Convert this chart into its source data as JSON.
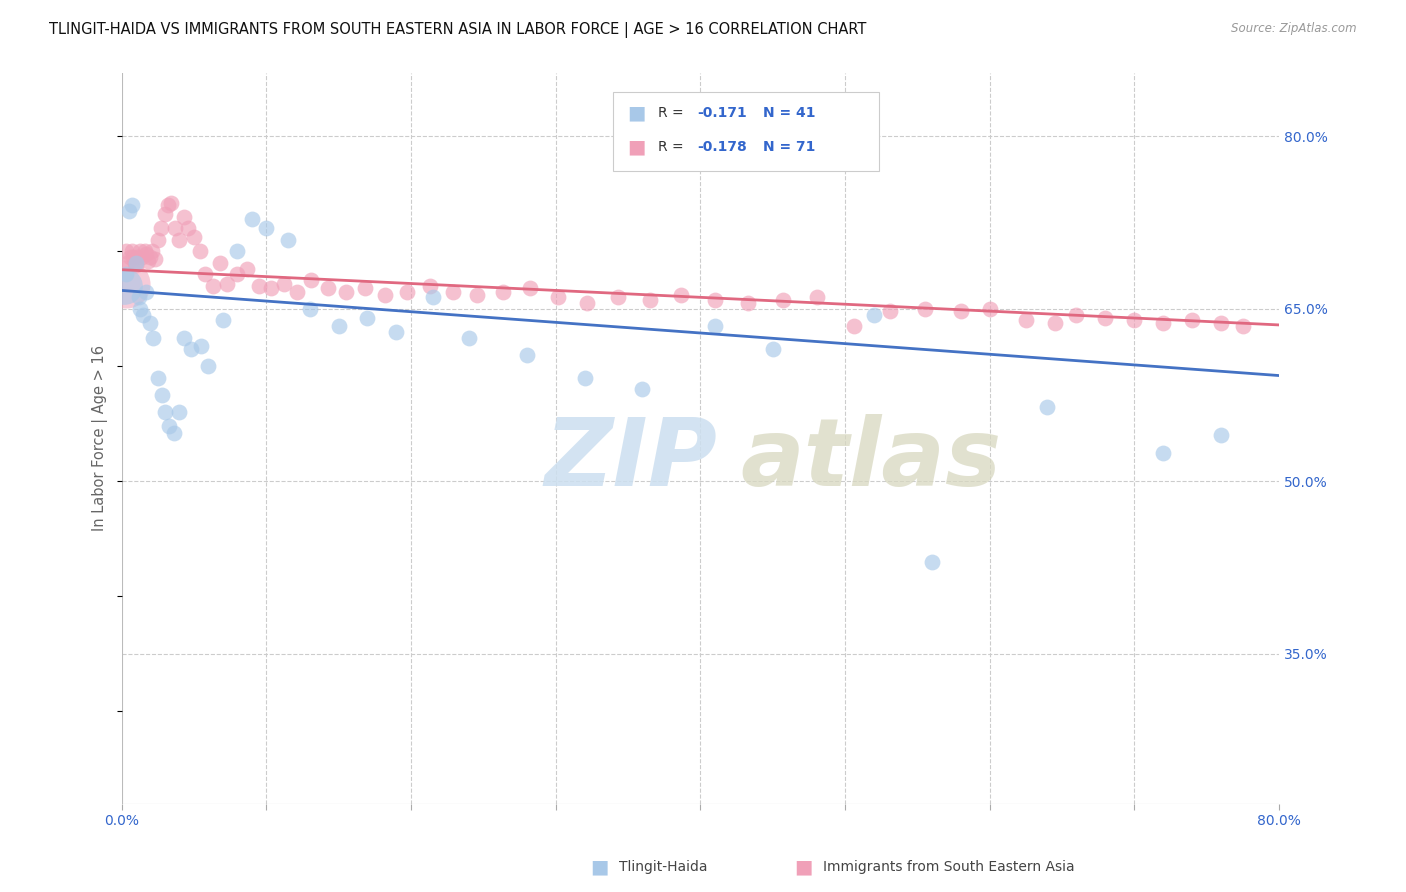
{
  "title": "TLINGIT-HAIDA VS IMMIGRANTS FROM SOUTH EASTERN ASIA IN LABOR FORCE | AGE > 16 CORRELATION CHART",
  "source": "Source: ZipAtlas.com",
  "ylabel": "In Labor Force | Age > 16",
  "x_min": 0.0,
  "x_max": 0.8,
  "y_min": 0.22,
  "y_max": 0.855,
  "y_ticks": [
    0.35,
    0.5,
    0.65,
    0.8
  ],
  "y_tick_labels": [
    "35.0%",
    "50.0%",
    "65.0%",
    "80.0%"
  ],
  "legend_label1": "Tlingit-Haida",
  "legend_label2": "Immigrants from South Eastern Asia",
  "R1": -0.171,
  "N1": 41,
  "R2": -0.178,
  "N2": 71,
  "blue_color": "#a8c8e8",
  "pink_color": "#f0a0b8",
  "blue_line_color": "#4472c4",
  "pink_line_color": "#e06880",
  "blue_line_x0": 0.0,
  "blue_line_y0": 0.666,
  "blue_line_x1": 0.8,
  "blue_line_y1": 0.592,
  "pink_line_x0": 0.0,
  "pink_line_y0": 0.684,
  "pink_line_x1": 0.8,
  "pink_line_y1": 0.636,
  "blue_x": [
    0.003,
    0.005,
    0.007,
    0.01,
    0.012,
    0.013,
    0.015,
    0.017,
    0.02,
    0.022,
    0.025,
    0.028,
    0.03,
    0.033,
    0.036,
    0.04,
    0.043,
    0.048,
    0.055,
    0.06,
    0.07,
    0.08,
    0.09,
    0.1,
    0.115,
    0.13,
    0.15,
    0.17,
    0.19,
    0.215,
    0.24,
    0.28,
    0.32,
    0.36,
    0.41,
    0.45,
    0.52,
    0.56,
    0.64,
    0.72,
    0.76
  ],
  "blue_y": [
    0.68,
    0.735,
    0.74,
    0.69,
    0.66,
    0.65,
    0.645,
    0.665,
    0.638,
    0.625,
    0.59,
    0.575,
    0.56,
    0.548,
    0.542,
    0.56,
    0.625,
    0.615,
    0.618,
    0.6,
    0.64,
    0.7,
    0.728,
    0.72,
    0.71,
    0.65,
    0.635,
    0.642,
    0.63,
    0.66,
    0.625,
    0.61,
    0.59,
    0.58,
    0.635,
    0.615,
    0.645,
    0.43,
    0.565,
    0.525,
    0.54
  ],
  "blue_large_x": [
    0.002
  ],
  "blue_large_y": [
    0.67
  ],
  "blue_large_s": 700,
  "pink_x": [
    0.003,
    0.004,
    0.006,
    0.007,
    0.008,
    0.009,
    0.01,
    0.011,
    0.013,
    0.014,
    0.016,
    0.017,
    0.018,
    0.02,
    0.021,
    0.023,
    0.025,
    0.027,
    0.03,
    0.032,
    0.034,
    0.037,
    0.04,
    0.043,
    0.046,
    0.05,
    0.054,
    0.058,
    0.063,
    0.068,
    0.073,
    0.08,
    0.087,
    0.095,
    0.103,
    0.112,
    0.121,
    0.131,
    0.143,
    0.155,
    0.168,
    0.182,
    0.197,
    0.213,
    0.229,
    0.246,
    0.264,
    0.282,
    0.302,
    0.322,
    0.343,
    0.365,
    0.387,
    0.41,
    0.433,
    0.457,
    0.481,
    0.506,
    0.531,
    0.555,
    0.58,
    0.6,
    0.625,
    0.645,
    0.66,
    0.68,
    0.7,
    0.72,
    0.74,
    0.76,
    0.775
  ],
  "pink_y": [
    0.7,
    0.69,
    0.695,
    0.7,
    0.695,
    0.69,
    0.688,
    0.695,
    0.7,
    0.695,
    0.7,
    0.698,
    0.692,
    0.695,
    0.7,
    0.693,
    0.71,
    0.72,
    0.732,
    0.74,
    0.742,
    0.72,
    0.71,
    0.73,
    0.72,
    0.712,
    0.7,
    0.68,
    0.67,
    0.69,
    0.672,
    0.68,
    0.685,
    0.67,
    0.668,
    0.672,
    0.665,
    0.675,
    0.668,
    0.665,
    0.668,
    0.662,
    0.665,
    0.67,
    0.665,
    0.662,
    0.665,
    0.668,
    0.66,
    0.655,
    0.66,
    0.658,
    0.662,
    0.658,
    0.655,
    0.658,
    0.66,
    0.635,
    0.648,
    0.65,
    0.648,
    0.65,
    0.64,
    0.638,
    0.645,
    0.642,
    0.64,
    0.638,
    0.64,
    0.638,
    0.635
  ],
  "pink_large_x": [
    0.003
  ],
  "pink_large_y": [
    0.672
  ],
  "pink_large_s": 1200,
  "watermark_zip_color": "#ccdff0",
  "watermark_atlas_color": "#d8d8c0"
}
